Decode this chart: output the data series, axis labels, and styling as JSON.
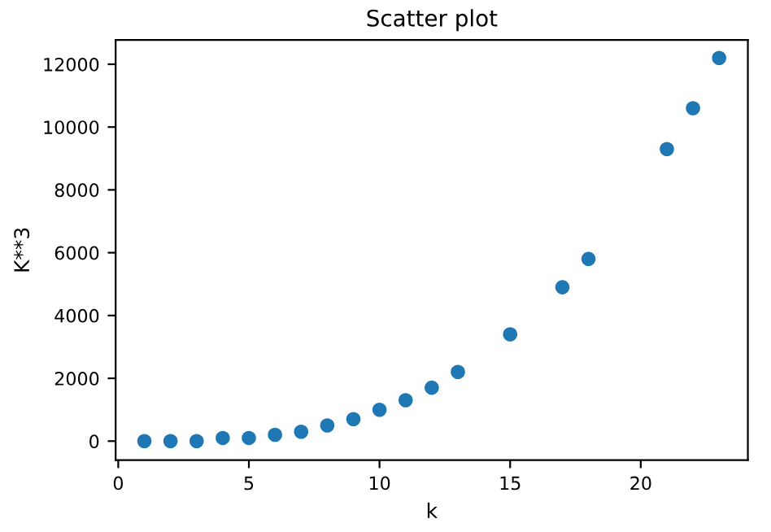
{
  "chart_data": {
    "type": "scatter",
    "title": "Scatter plot",
    "xlabel": "k",
    "ylabel": "K**3",
    "x": [
      1,
      2,
      3,
      4,
      5,
      6,
      7,
      8,
      9,
      10,
      11,
      12,
      13,
      15,
      17,
      18,
      21,
      22,
      23
    ],
    "series": [
      {
        "color": "#1f77b4",
        "values": [
          0,
          0,
          0,
          100,
          100,
          200,
          300,
          500,
          700,
          1000,
          1300,
          1700,
          2200,
          3400,
          4900,
          5800,
          9300,
          10600,
          12200
        ]
      }
    ],
    "xlim": [
      -0.1,
      24.1
    ],
    "ylim": [
      -607,
      12775
    ],
    "xticks": [
      0,
      5,
      10,
      15,
      20
    ],
    "yticks": [
      0,
      2000,
      4000,
      6000,
      8000,
      10000,
      12000
    ],
    "marker": "circle",
    "grid": false
  }
}
